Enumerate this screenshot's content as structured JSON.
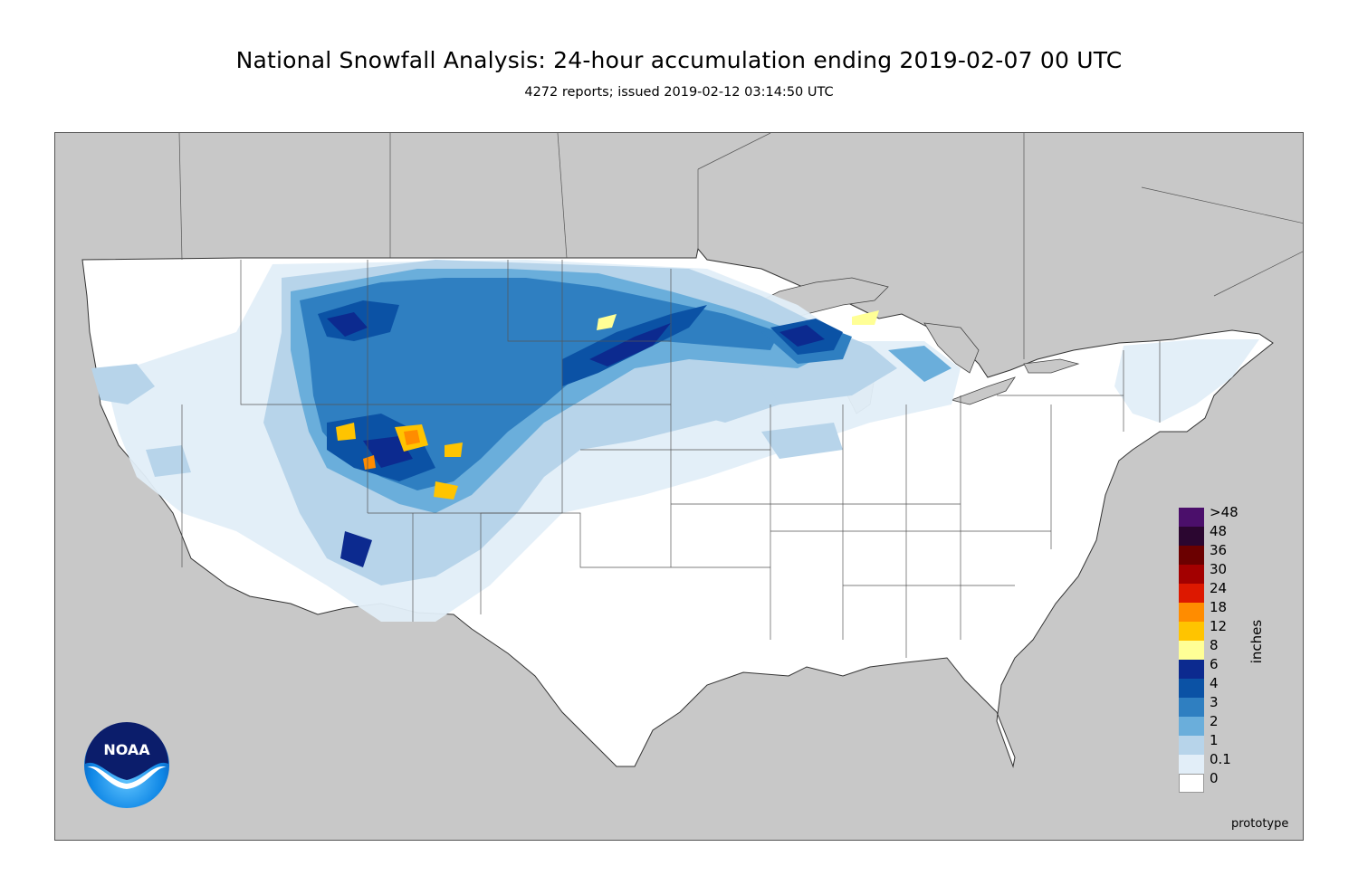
{
  "title": "National Snowfall Analysis: 24-hour accumulation ending 2019-02-07 00 UTC",
  "subtitle": "4272 reports; issued 2019-02-12 03:14:50 UTC",
  "legend": {
    "title": "inches",
    "entries": [
      {
        "label": ">48",
        "color": "#4b0f6b"
      },
      {
        "label": "48",
        "color": "#2b0630"
      },
      {
        "label": "36",
        "color": "#6b0000"
      },
      {
        "label": "30",
        "color": "#a30000"
      },
      {
        "label": "24",
        "color": "#dd1800"
      },
      {
        "label": "18",
        "color": "#ff8c00"
      },
      {
        "label": "12",
        "color": "#ffc400"
      },
      {
        "label": "8",
        "color": "#ffff96"
      },
      {
        "label": "6",
        "color": "#0c2a8f"
      },
      {
        "label": "4",
        "color": "#0b52a5"
      },
      {
        "label": "3",
        "color": "#2f7fc1"
      },
      {
        "label": "2",
        "color": "#6aaedb"
      },
      {
        "label": "1",
        "color": "#b7d4ea"
      },
      {
        "label": "0.1",
        "color": "#e2eef8"
      },
      {
        "label": "0",
        "color": "#ffffff"
      }
    ]
  },
  "footer_note": "prototype",
  "logo_text": "NOAA",
  "colors": {
    "background_land": "#c8c8c8",
    "conus": "#ffffff",
    "boundary": "#444444"
  }
}
